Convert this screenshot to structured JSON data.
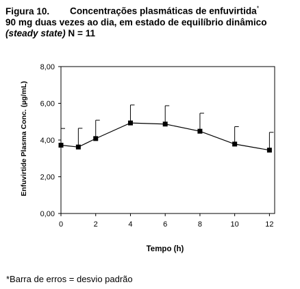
{
  "figure": {
    "label": "Figura 10.",
    "title_line1": "Concentrações plasmáticas de enfuvirtida",
    "title_line1_mark": "*",
    "title_line2": "90 mg duas vezes ao dia, em estado de equilíbrio dinâmico",
    "title_line3_italic": "(steady state)",
    "title_line3_rest": " N = 11",
    "footnote": "*Barra de erros = desvio padrão"
  },
  "chart_data": {
    "type": "line",
    "xlabel": "Tempo (h)",
    "ylabel": "Enfuvirtide Plasma Conc. (µg/mL)",
    "xlim": [
      0,
      12.3
    ],
    "ylim": [
      0,
      8
    ],
    "xticks": [
      0,
      2,
      4,
      6,
      8,
      10,
      12
    ],
    "xtick_labels": [
      "0",
      "2",
      "4",
      "6",
      "8",
      "10",
      "12"
    ],
    "yticks": [
      0,
      2,
      4,
      6,
      8
    ],
    "ytick_labels": [
      "0,00",
      "2,00",
      "4,00",
      "6,00",
      "8,00"
    ],
    "grid": false,
    "series": [
      {
        "x": [
          0,
          1,
          2,
          4,
          6,
          8,
          10,
          12
        ],
        "y": [
          3.72,
          3.62,
          4.08,
          4.93,
          4.87,
          4.48,
          3.78,
          3.45
        ],
        "error_upper": [
          0.91,
          1.02,
          1.0,
          0.98,
          1.0,
          0.98,
          0.95,
          0.97
        ],
        "color": "#000000",
        "marker": "square"
      }
    ]
  }
}
